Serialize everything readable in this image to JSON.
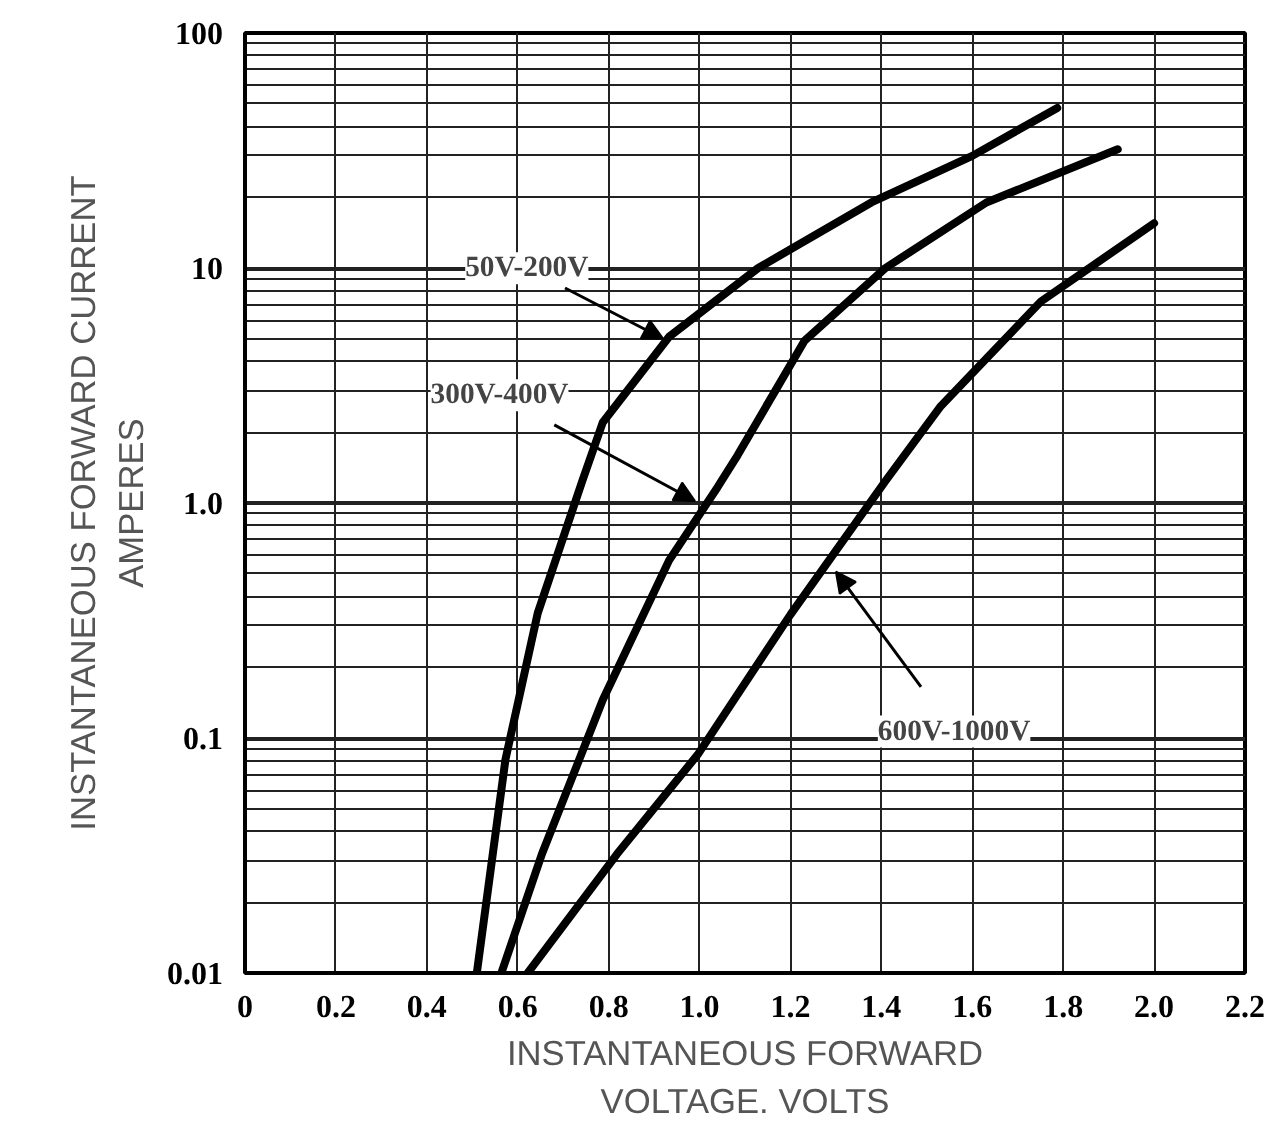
{
  "chart_data": {
    "type": "line",
    "xlabel": "INSTANTANEOUS FORWARD\nVOLTAGE. VOLTS",
    "ylabel": "INSTANTANEOUS FORWARD CURRENT\nAMPERES",
    "log": "y",
    "grid": true,
    "line_style": "solid",
    "xlim": [
      0,
      2.2
    ],
    "ylim": [
      0.01,
      100
    ],
    "xticks": [
      0,
      0.2,
      0.4,
      0.6,
      0.8,
      {
        "value": 1.0,
        "label": "1.0"
      },
      1.2,
      1.4,
      1.6,
      1.8,
      {
        "value": 2.0,
        "label": "2.0"
      },
      2.2
    ],
    "yticks": [
      0.01,
      0.1,
      {
        "value": 1,
        "label": "1.0"
      },
      10,
      100
    ],
    "series": [
      {
        "color": "#000000",
        "x": [
          0.51,
          0.573,
          0.644,
          0.742,
          0.787,
          0.933,
          1.129,
          1.378,
          1.6,
          1.787
        ],
        "values": [
          0.01,
          0.081,
          0.34,
          1.24,
          2.2,
          5.1,
          10,
          19,
          30,
          48
        ]
      },
      {
        "color": "#000000",
        "x": [
          0.564,
          0.653,
          0.787,
          0.933,
          1.04,
          1.084,
          1.231,
          1.409,
          1.631,
          1.92
        ],
        "values": [
          0.01,
          0.032,
          0.145,
          0.57,
          1.17,
          1.6,
          4.9,
          10,
          19,
          32
        ]
      },
      {
        "color": "#000000",
        "x": [
          0.622,
          0.818,
          0.996,
          1.2,
          1.409,
          1.529,
          1.751,
          2.0
        ],
        "values": [
          0.01,
          0.032,
          0.085,
          0.335,
          1.24,
          2.56,
          7.2,
          15.5
        ]
      }
    ],
    "annotations": [
      {
        "text": "50V-200V",
        "x": 0.92,
        "y": 5
      },
      {
        "text": "300V-400V",
        "x": 0.99,
        "y": 1.02
      },
      {
        "text": "600V-1000V",
        "x": 1.3,
        "y": 0.51
      }
    ]
  }
}
